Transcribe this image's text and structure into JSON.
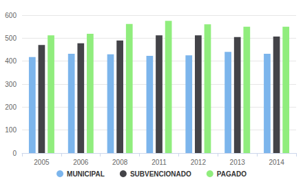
{
  "chart_data": {
    "type": "bar",
    "categories": [
      "2005",
      "2006",
      "2008",
      "2011",
      "2012",
      "2013",
      "2014"
    ],
    "series": [
      {
        "name": "MUNICIPAL",
        "color": "#7cb5ec",
        "values": [
          418,
          432,
          430,
          423,
          425,
          440,
          432
        ]
      },
      {
        "name": "SUBVENCIONADO",
        "color": "#434348",
        "values": [
          470,
          478,
          490,
          512,
          512,
          505,
          507
        ]
      },
      {
        "name": "PAGADO",
        "color": "#90ed7d",
        "values": [
          512,
          519,
          562,
          575,
          560,
          550,
          550
        ]
      }
    ],
    "ylim": [
      0,
      600
    ],
    "yticks": [
      0,
      100,
      200,
      300,
      400,
      500,
      600
    ],
    "grid": true,
    "legend": "bottom"
  }
}
